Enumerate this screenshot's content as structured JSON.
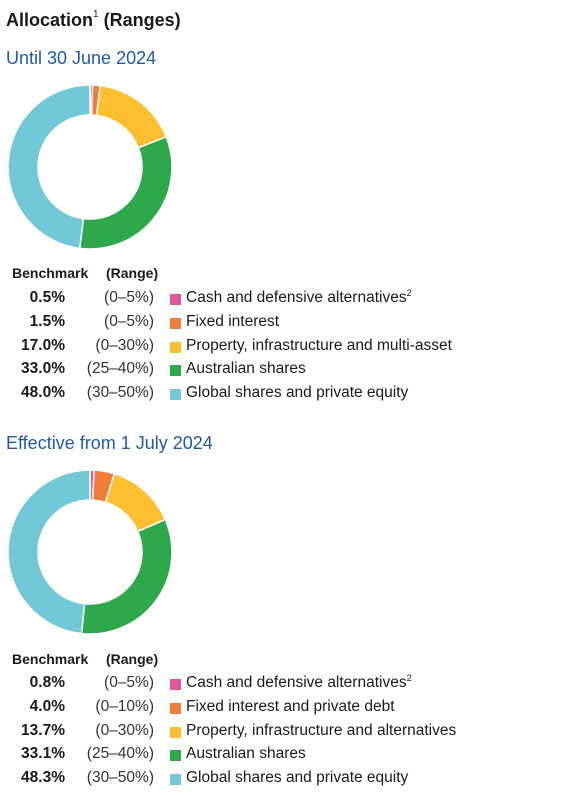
{
  "title": "Allocation",
  "title_note": "1",
  "title_suffix": " (Ranges)",
  "chart_data": [
    {
      "type": "pie",
      "subtitle": "Until 30 June 2024",
      "header": {
        "benchmark": "Benchmark",
        "range": "(Range)"
      },
      "categories": [
        "Cash and defensive alternatives",
        "Fixed interest",
        "Property, infrastructure and multi-asset",
        "Australian shares",
        "Global shares and private equity"
      ],
      "category_notes": [
        "2",
        "",
        "",
        "",
        ""
      ],
      "values": [
        0.5,
        1.5,
        17.0,
        33.0,
        48.0
      ],
      "value_labels": [
        "0.5%",
        "1.5%",
        "17.0%",
        "33.0%",
        "48.0%"
      ],
      "ranges": [
        "(0–5%)",
        "(0–5%)",
        "(0–30%)",
        "(25–40%)",
        "(30–50%)"
      ],
      "colors": [
        "#e0569a",
        "#ef7d3c",
        "#fbbf30",
        "#2ea84a",
        "#72c8d6"
      ]
    },
    {
      "type": "pie",
      "subtitle": "Effective from 1 July 2024",
      "header": {
        "benchmark": "Benchmark",
        "range": "(Range)"
      },
      "categories": [
        "Cash and defensive alternatives",
        "Fixed interest and private debt",
        "Property, infrastructure and alternatives",
        "Australian shares",
        "Global shares and private equity"
      ],
      "category_notes": [
        "2",
        "",
        "",
        "",
        ""
      ],
      "values": [
        0.8,
        4.0,
        13.7,
        33.1,
        48.3
      ],
      "value_labels": [
        "0.8%",
        "4.0%",
        "13.7%",
        "33.1%",
        "48.3%"
      ],
      "ranges": [
        "(0–5%)",
        "(0–10%)",
        "(0–30%)",
        "(25–40%)",
        "(30–50%)"
      ],
      "colors": [
        "#e0569a",
        "#ef7d3c",
        "#fbbf30",
        "#2ea84a",
        "#72c8d6"
      ]
    }
  ]
}
